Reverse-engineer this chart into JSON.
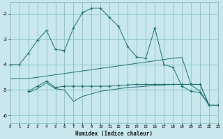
{
  "xlabel": "Humidex (Indice chaleur)",
  "bg_color": "#c8e8ee",
  "grid_color": "#7ab8bc",
  "line_color": "#1a6b6b",
  "xlim": [
    0,
    23
  ],
  "ylim": [
    -6.3,
    -1.55
  ],
  "yticks": [
    -6,
    -5,
    -4,
    -3,
    -2
  ],
  "xticks": [
    0,
    1,
    2,
    3,
    4,
    5,
    6,
    7,
    8,
    9,
    10,
    11,
    12,
    13,
    14,
    15,
    16,
    17,
    18,
    19,
    20,
    21,
    22,
    23
  ],
  "s1_x": [
    0,
    1,
    2,
    3,
    4,
    5,
    6,
    7,
    8,
    9,
    10,
    11,
    12,
    13,
    14,
    15,
    16,
    17,
    18,
    19,
    20,
    21,
    22,
    23
  ],
  "s1_y": [
    -4.0,
    -4.0,
    -3.55,
    -3.05,
    -2.65,
    -3.4,
    -3.45,
    -2.55,
    -1.95,
    -1.78,
    -1.78,
    -2.15,
    -2.5,
    -3.3,
    -3.7,
    -3.75,
    -2.55,
    -4.0,
    -4.1,
    -4.85,
    -5.05,
    -5.1,
    -5.6,
    -5.6
  ],
  "s2_x": [
    0,
    1,
    2,
    3,
    4,
    5,
    6,
    7,
    8,
    9,
    10,
    11,
    12,
    13,
    14,
    15,
    16,
    17,
    18,
    19,
    20,
    21,
    22,
    23
  ],
  "s2_y": [
    -4.55,
    -4.55,
    -4.55,
    -4.5,
    -4.45,
    -4.4,
    -4.35,
    -4.3,
    -4.25,
    -4.2,
    -4.15,
    -4.1,
    -4.05,
    -4.0,
    -3.95,
    -3.9,
    -3.85,
    -3.8,
    -3.75,
    -3.72,
    -4.8,
    -5.05,
    -5.6,
    -5.6
  ],
  "s3_x": [
    2,
    3,
    4,
    5,
    6,
    7,
    8,
    9,
    10,
    11,
    12,
    13,
    14,
    15,
    16,
    17,
    18,
    19,
    20,
    21,
    22,
    23
  ],
  "s3_y": [
    -5.05,
    -4.85,
    -4.65,
    -4.9,
    -4.85,
    -4.85,
    -4.85,
    -4.85,
    -4.85,
    -4.85,
    -4.82,
    -4.8,
    -4.78,
    -4.78,
    -4.78,
    -4.78,
    -4.78,
    -4.78,
    -4.78,
    -4.78,
    -5.6,
    -5.6
  ],
  "s4_x": [
    2,
    3,
    4,
    5,
    6,
    7,
    8,
    9,
    10,
    11,
    12,
    13,
    14,
    15,
    16,
    17,
    18,
    19,
    20,
    21,
    22,
    23
  ],
  "s4_y": [
    -5.1,
    -4.95,
    -4.72,
    -4.95,
    -5.0,
    -5.45,
    -5.25,
    -5.15,
    -5.05,
    -5.0,
    -4.95,
    -4.9,
    -4.88,
    -4.85,
    -4.82,
    -4.8,
    -4.78,
    -4.78,
    -4.78,
    -4.78,
    -5.6,
    -5.6
  ]
}
